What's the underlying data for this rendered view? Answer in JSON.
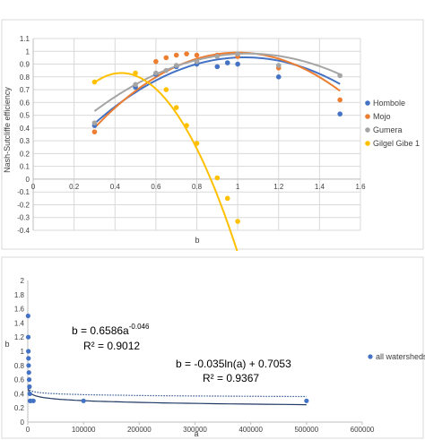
{
  "colors": {
    "hombole": "#4472c4",
    "mojo": "#ed7d31",
    "gumera": "#a5a5a5",
    "gilgel": "#ffc000",
    "grid": "#d9d9d9",
    "axis": "#bfbfbf",
    "panel_border": "#d9d9d9",
    "trend_solid": "#1f3864",
    "trend_dotted": "#2f5597"
  },
  "chart_data": [
    {
      "type": "scatter",
      "title": "",
      "xlabel": "b",
      "ylabel": "Nash-Sutcliffe efficiency",
      "xlim": [
        0,
        1.6
      ],
      "ylim": [
        -0.4,
        1.1
      ],
      "grid": true,
      "legend_position": "right",
      "x_ticks": [
        "0",
        "0.2",
        "0.4",
        "0.6",
        "0.8",
        "1",
        "1.2",
        "1.4",
        "1.6"
      ],
      "x_tick_values": [
        0,
        0.2,
        0.4,
        0.6,
        0.8,
        1.0,
        1.2,
        1.4,
        1.6
      ],
      "y_ticks": [
        "-0.4",
        "-0.3",
        "-0.2",
        "-0.1",
        "0",
        "0.1",
        "0.2",
        "0.3",
        "0.4",
        "0.5",
        "0.6",
        "0.7",
        "0.8",
        "0.9",
        "1",
        "1.1"
      ],
      "y_tick_values": [
        -0.4,
        -0.3,
        -0.2,
        -0.1,
        0,
        0.1,
        0.2,
        0.3,
        0.4,
        0.5,
        0.6,
        0.7,
        0.8,
        0.9,
        1.0,
        1.1
      ],
      "series": [
        {
          "name": "Hombole",
          "color_key": "hombole",
          "points": [
            [
              0.3,
              0.42
            ],
            [
              0.5,
              0.72
            ],
            [
              0.6,
              0.82
            ],
            [
              0.7,
              0.88
            ],
            [
              0.8,
              0.9
            ],
            [
              0.9,
              0.88
            ],
            [
              0.95,
              0.91
            ],
            [
              1.0,
              0.9
            ],
            [
              1.2,
              0.8
            ],
            [
              1.5,
              0.51
            ]
          ],
          "trend_poly": [
            -0.962,
            1.989,
            -0.075
          ],
          "trend_range": [
            0.3,
            1.5
          ]
        },
        {
          "name": "Mojo",
          "color_key": "mojo",
          "points": [
            [
              0.3,
              0.37
            ],
            [
              0.6,
              0.92
            ],
            [
              0.65,
              0.95
            ],
            [
              0.7,
              0.97
            ],
            [
              0.75,
              0.98
            ],
            [
              0.8,
              0.97
            ],
            [
              0.9,
              0.97
            ],
            [
              1.0,
              0.96
            ],
            [
              1.2,
              0.87
            ],
            [
              1.5,
              0.62
            ]
          ],
          "trend_poly": [
            -1.2,
            2.4,
            -0.21
          ],
          "trend_range": [
            0.3,
            1.5
          ]
        },
        {
          "name": "Gumera",
          "color_key": "gumera",
          "points": [
            [
              0.3,
              0.44
            ],
            [
              0.5,
              0.74
            ],
            [
              0.6,
              0.83
            ],
            [
              0.65,
              0.85
            ],
            [
              0.7,
              0.89
            ],
            [
              0.8,
              0.92
            ],
            [
              0.9,
              0.96
            ],
            [
              1.0,
              0.98
            ],
            [
              1.2,
              0.89
            ],
            [
              1.5,
              0.81
            ]
          ],
          "trend_poly": [
            -0.8,
            1.68,
            0.1
          ],
          "trend_range": [
            0.3,
            1.5
          ]
        },
        {
          "name": "Gilgel Gibe 1",
          "color_key": "gilgel",
          "points": [
            [
              0.3,
              0.76
            ],
            [
              0.5,
              0.83
            ],
            [
              0.65,
              0.7
            ],
            [
              0.7,
              0.56
            ],
            [
              0.75,
              0.42
            ],
            [
              0.8,
              0.28
            ],
            [
              0.9,
              0.01
            ],
            [
              0.95,
              -0.15
            ],
            [
              1.0,
              -0.33
            ]
          ],
          "trend_poly": [
            -4.34,
            3.739,
            0.025
          ],
          "trend_range": [
            0.3,
            1.0
          ]
        }
      ]
    },
    {
      "type": "scatter",
      "title": "",
      "xlabel": "a",
      "ylabel": "b",
      "xlim": [
        0,
        600000
      ],
      "ylim": [
        0,
        2
      ],
      "grid": false,
      "legend_position": "right",
      "x_ticks": [
        "0",
        "100000",
        "200000",
        "300000",
        "400000",
        "500000",
        "600000"
      ],
      "x_tick_values": [
        0,
        100000,
        200000,
        300000,
        400000,
        500000,
        600000
      ],
      "y_ticks": [
        "0",
        "0.2",
        "0.4",
        "0.6",
        "0.8",
        "1",
        "1.2",
        "1.4",
        "1.6",
        "1.8",
        "2"
      ],
      "y_tick_values": [
        0,
        0.2,
        0.4,
        0.6,
        0.8,
        1.0,
        1.2,
        1.4,
        1.6,
        1.8,
        2.0
      ],
      "series": [
        {
          "name": "all watersheds",
          "color_key": "hombole",
          "points": [
            [
              500,
              1.5
            ],
            [
              800,
              1.2
            ],
            [
              1000,
              1.0
            ],
            [
              1200,
              0.9
            ],
            [
              1500,
              0.8
            ],
            [
              2000,
              0.7
            ],
            [
              2500,
              0.6
            ],
            [
              3000,
              0.5
            ],
            [
              3500,
              0.4
            ],
            [
              4000,
              0.3
            ],
            [
              5000,
              0.3
            ],
            [
              10000,
              0.3
            ],
            [
              100000,
              0.3
            ],
            [
              500000,
              0.3
            ]
          ]
        }
      ],
      "trendlines": [
        {
          "kind": "power",
          "coef": 0.6586,
          "exp": -0.046,
          "style": "dotted",
          "color_key": "trend_dotted"
        },
        {
          "kind": "log",
          "slope": -0.035,
          "intercept": 0.7053,
          "style": "solid",
          "color_key": "trend_solid"
        }
      ],
      "annotations": {
        "power_eq_main": "b = 0.6586a",
        "power_eq_exp": "-0.046",
        "power_r2": "R² = 0.9012",
        "log_eq": "b = -0.035ln(a) + 0.7053",
        "log_r2": "R² = 0.9367"
      }
    }
  ]
}
